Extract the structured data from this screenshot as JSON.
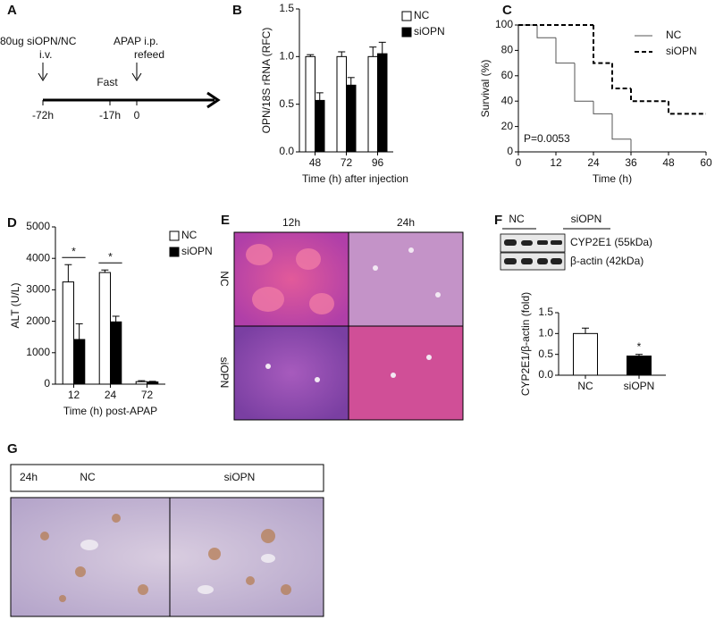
{
  "panel_labels": [
    "A",
    "B",
    "C",
    "D",
    "E",
    "F",
    "G"
  ],
  "timeline": {
    "events": [
      {
        "label": "80ug siOPN/NC",
        "sublabel": "i.v.",
        "tick": "-72h"
      },
      {
        "label": "Fast",
        "tick": "-17h"
      },
      {
        "label": "APAP i.p.",
        "sublabel": "refeed",
        "tick": "0"
      }
    ]
  },
  "chart_data": [
    {
      "type": "bar",
      "ylabel": "OPN/18S rRNA (RFC)",
      "xlabel": "Time (h) after injection",
      "categories": [
        "48",
        "72",
        "96"
      ],
      "series": [
        {
          "name": "NC",
          "color": "#ffffff",
          "values": [
            1.0,
            1.0,
            1.0
          ],
          "errors": [
            0.02,
            0.05,
            0.1
          ]
        },
        {
          "name": "siOPN",
          "color": "#000000",
          "values": [
            0.54,
            0.7,
            1.03
          ],
          "errors": [
            0.08,
            0.08,
            0.12
          ]
        }
      ],
      "ylim": [
        0,
        1.5
      ],
      "yticks": [
        {
          "value": 0,
          "label": "0.0"
        },
        {
          "value": 0.5,
          "label": "0.5"
        },
        {
          "value": 1,
          "label": "1.0"
        },
        {
          "value": 1.5,
          "label": "1.5"
        }
      ],
      "legend": "right"
    },
    {
      "type": "line",
      "ylabel": "Survival (%)",
      "xlabel": "Time (h)",
      "annotation": "P=0.0053",
      "series": [
        {
          "name": "NC",
          "color": "#555555",
          "dash": false,
          "x": [
            0,
            6,
            12,
            18,
            24,
            30,
            36
          ],
          "values": [
            100,
            90,
            70,
            40,
            30,
            10,
            0
          ]
        },
        {
          "name": "siOPN",
          "color": "#000000",
          "dash": true,
          "x": [
            0,
            24,
            30,
            36,
            48,
            60
          ],
          "values": [
            100,
            70,
            50,
            40,
            30,
            30
          ]
        }
      ],
      "xlim": [
        0,
        60
      ],
      "xticks": [
        0,
        12,
        24,
        36,
        48,
        60
      ],
      "ylim": [
        0,
        100
      ],
      "yticks": [
        0,
        20,
        40,
        60,
        80,
        100
      ],
      "legend": "right"
    },
    {
      "type": "bar",
      "ylabel": "ALT (U/L)",
      "xlabel": "Time (h) post-APAP",
      "categories": [
        "12",
        "24",
        "72"
      ],
      "series": [
        {
          "name": "NC",
          "color": "#ffffff",
          "values": [
            3250,
            3550,
            80
          ],
          "errors": [
            550,
            80,
            30
          ]
        },
        {
          "name": "siOPN",
          "color": "#000000",
          "values": [
            1420,
            1980,
            70
          ],
          "errors": [
            500,
            180,
            20
          ]
        }
      ],
      "ylim": [
        0,
        5000
      ],
      "yticks": [
        0,
        1000,
        2000,
        3000,
        4000,
        5000
      ],
      "annotations": [
        "*",
        "*"
      ],
      "legend": "right"
    },
    {
      "type": "bar",
      "ylabel": "CYP2E1/β-actin (fold)",
      "categories": [
        "NC",
        "siOPN"
      ],
      "values": [
        1.0,
        0.46
      ],
      "errors": [
        0.13,
        0.04
      ],
      "colors": [
        "#ffffff",
        "#000000"
      ],
      "ylim": [
        0,
        1.5
      ],
      "yticks": [
        {
          "value": 0,
          "label": "0.0"
        },
        {
          "value": 0.5,
          "label": "0.5"
        },
        {
          "value": 1,
          "label": "1.0"
        },
        {
          "value": 1.5,
          "label": "1.5"
        }
      ],
      "annotations": [
        "*"
      ]
    }
  ],
  "histology_e": {
    "columns": [
      "12h",
      "24h"
    ],
    "rows": [
      "NC",
      "siOPN"
    ]
  },
  "western_f": {
    "groups": [
      "NC",
      "siOPN"
    ],
    "bands": [
      "CYP2E1 (55kDa)",
      "β-actin (42kDa)"
    ]
  },
  "histology_g": {
    "header": [
      "24h",
      "NC",
      "siOPN"
    ]
  }
}
